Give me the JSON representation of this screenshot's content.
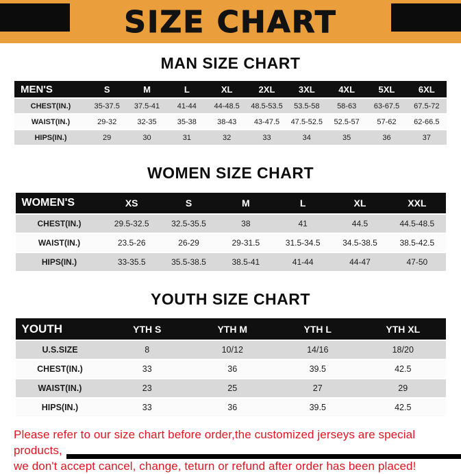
{
  "banner": {
    "title": "SIZE CHART",
    "bg_color": "#EA9E3C",
    "corner_block_color": "#0c0c0c"
  },
  "colors": {
    "table_header_bg": "#101010",
    "row_gray": "#D9D9D9",
    "row_white": "#FBFBFB",
    "footer_red": "#E11522"
  },
  "chart_data": [
    {
      "type": "table",
      "title": "MAN SIZE CHART",
      "header": [
        "MEN'S",
        "S",
        "M",
        "L",
        "XL",
        "2XL",
        "3XL",
        "4XL",
        "5XL",
        "6XL"
      ],
      "rows": [
        [
          "CHEST(IN.)",
          "35-37.5",
          "37.5-41",
          "41-44",
          "44-48.5",
          "48.5-53.5",
          "53.5-58",
          "58-63",
          "63-67.5",
          "67.5-72"
        ],
        [
          "WAIST(IN.)",
          "29-32",
          "32-35",
          "35-38",
          "38-43",
          "43-47.5",
          "47.5-52.5",
          "52.5-57",
          "57-62",
          "62-66.5"
        ],
        [
          "HIPS(IN.)",
          "29",
          "30",
          "31",
          "32",
          "33",
          "34",
          "35",
          "36",
          "37"
        ]
      ]
    },
    {
      "type": "table",
      "title": "WOMEN SIZE CHART",
      "header": [
        "WOMEN'S",
        "XS",
        "S",
        "M",
        "L",
        "XL",
        "XXL"
      ],
      "rows": [
        [
          "CHEST(IN.)",
          "29.5-32.5",
          "32.5-35.5",
          "38",
          "41",
          "44.5",
          "44.5-48.5"
        ],
        [
          "WAIST(IN.)",
          "23.5-26",
          "26-29",
          "29-31.5",
          "31.5-34.5",
          "34.5-38.5",
          "38.5-42.5"
        ],
        [
          "HIPS(IN.)",
          "33-35.5",
          "35.5-38.5",
          "38.5-41",
          "41-44",
          "44-47",
          "47-50"
        ]
      ]
    },
    {
      "type": "table",
      "title": "YOUTH SIZE CHART",
      "header": [
        "YOUTH",
        "YTH S",
        "YTH M",
        "YTH L",
        "YTH XL"
      ],
      "rows": [
        [
          "U.S.SIZE",
          "8",
          "10/12",
          "14/16",
          "18/20"
        ],
        [
          "CHEST(IN.)",
          "33",
          "36",
          "39.5",
          "42.5"
        ],
        [
          "WAIST(IN.)",
          "23",
          "25",
          "27",
          "29"
        ],
        [
          "HIPS(IN.)",
          "33",
          "36",
          "39.5",
          "42.5"
        ]
      ]
    }
  ],
  "footer": {
    "line1": "Please refer to our size chart before order,the customized jerseys are special products,",
    "line2": "we don't accept cancel, change, teturn or refund after order has been placed!"
  }
}
